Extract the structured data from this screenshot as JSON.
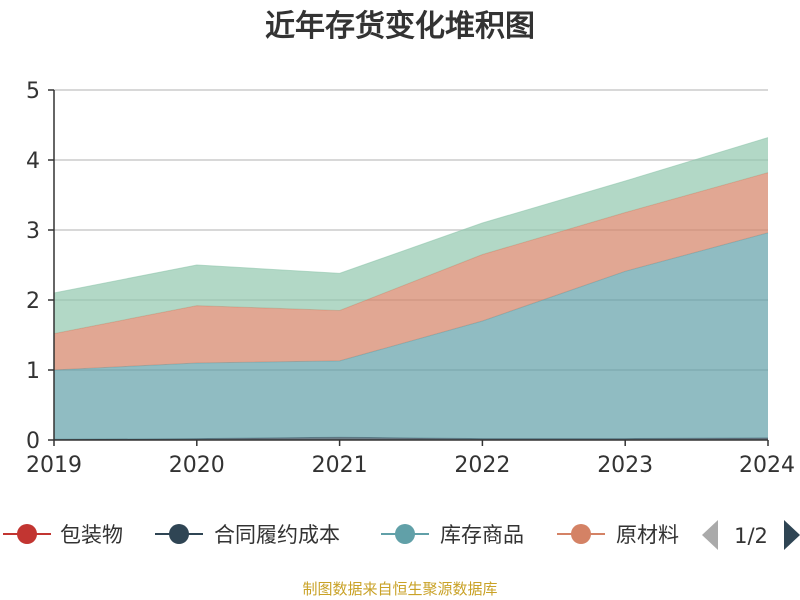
{
  "chart_data": {
    "type": "area",
    "stacked": true,
    "title": "近年存货变化堆积图",
    "xlabel": "",
    "ylabel": "",
    "x": [
      "2019",
      "2020",
      "2021",
      "2022",
      "2023",
      "2024"
    ],
    "ylim": [
      0,
      5
    ],
    "yticks": [
      0,
      1,
      2,
      3,
      4,
      5
    ],
    "grid": true,
    "series": [
      {
        "name": "包装物",
        "values": [
          0,
          0,
          0,
          0,
          0,
          0
        ],
        "color": "#c23531"
      },
      {
        "name": "合同履约成本",
        "values": [
          0.01,
          0.02,
          0.04,
          0.02,
          0.02,
          0.03
        ],
        "color": "#2f4554"
      },
      {
        "name": "库存商品",
        "values": [
          0.99,
          1.08,
          1.09,
          1.68,
          2.39,
          2.93
        ],
        "color": "#61a0a8"
      },
      {
        "name": "原材料",
        "values": [
          0.52,
          0.82,
          0.72,
          0.95,
          0.84,
          0.86
        ],
        "color": "#d48265"
      },
      {
        "name": "",
        "values": [
          0.58,
          0.58,
          0.53,
          0.45,
          0.45,
          0.5
        ],
        "color": "#91c7ae"
      }
    ],
    "legend": {
      "position": "bottom",
      "visible_items": [
        "包装物",
        "合同履约成本",
        "库存商品",
        "原材料"
      ],
      "page": "1/2"
    },
    "source": "制图数据来自恒生聚源数据库"
  }
}
